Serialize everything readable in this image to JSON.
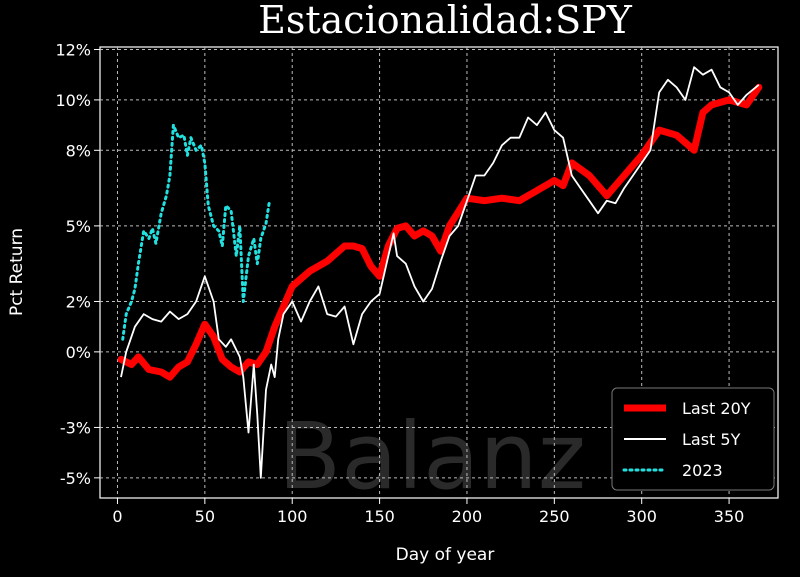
{
  "chart_data": {
    "type": "line",
    "title": "Estacionalidad:SPY",
    "xlabel": "Day of year",
    "ylabel": "Pct Return",
    "xlim": [
      -10,
      378
    ],
    "ylim": [
      -5.8,
      12.1
    ],
    "x_ticks": [
      0,
      50,
      100,
      150,
      200,
      250,
      300,
      350
    ],
    "y_ticks": [
      {
        "value": 12.0,
        "label": "12%"
      },
      {
        "value": 10.0,
        "label": "10%"
      },
      {
        "value": 8.0,
        "label": "8%"
      },
      {
        "value": 5.0,
        "label": "5%"
      },
      {
        "value": 2.0,
        "label": "2%"
      },
      {
        "value": 0.0,
        "label": "0%"
      },
      {
        "value": -3.0,
        "label": "-3%"
      },
      {
        "value": -5.0,
        "label": "-5%"
      }
    ],
    "grid": true,
    "legend_position": "bottom-right",
    "watermark": "Balanz",
    "series": [
      {
        "name": "Last 20Y",
        "color": "#ff0000",
        "style": "solid-thick",
        "x": [
          2,
          8,
          12,
          18,
          25,
          30,
          35,
          40,
          45,
          50,
          55,
          60,
          65,
          70,
          75,
          80,
          85,
          90,
          95,
          100,
          110,
          120,
          130,
          135,
          140,
          145,
          150,
          155,
          160,
          165,
          170,
          175,
          180,
          185,
          190,
          200,
          210,
          220,
          230,
          240,
          250,
          255,
          260,
          270,
          280,
          290,
          300,
          310,
          320,
          325,
          330,
          335,
          340,
          350,
          360,
          367
        ],
        "values": [
          -0.3,
          -0.5,
          -0.2,
          -0.7,
          -0.8,
          -1.0,
          -0.6,
          -0.4,
          0.3,
          1.1,
          0.6,
          -0.3,
          -0.6,
          -0.8,
          -0.4,
          -0.5,
          0.0,
          1.0,
          1.8,
          2.6,
          3.2,
          3.6,
          4.2,
          4.2,
          4.1,
          3.4,
          3.0,
          4.2,
          4.9,
          5.0,
          4.6,
          4.8,
          4.6,
          4.0,
          5.0,
          6.1,
          6.0,
          6.1,
          6.0,
          6.4,
          6.8,
          6.6,
          7.5,
          7.0,
          6.2,
          7.0,
          7.8,
          8.8,
          8.6,
          8.3,
          8.0,
          9.5,
          9.8,
          10.0,
          9.8,
          10.5
        ]
      },
      {
        "name": "Last 5Y",
        "color": "#ffffff",
        "style": "solid-thin",
        "x": [
          2,
          5,
          10,
          15,
          20,
          25,
          30,
          35,
          40,
          45,
          50,
          55,
          58,
          62,
          65,
          70,
          72,
          75,
          78,
          80,
          82,
          85,
          88,
          90,
          92,
          95,
          100,
          105,
          110,
          115,
          120,
          125,
          130,
          135,
          140,
          145,
          150,
          155,
          158,
          160,
          165,
          170,
          175,
          180,
          185,
          190,
          195,
          200,
          205,
          210,
          215,
          220,
          225,
          230,
          235,
          240,
          245,
          250,
          255,
          260,
          265,
          270,
          275,
          280,
          285,
          290,
          295,
          300,
          305,
          310,
          315,
          320,
          325,
          330,
          335,
          340,
          345,
          350,
          355,
          360,
          367
        ],
        "values": [
          -1.0,
          0.0,
          1.0,
          1.5,
          1.3,
          1.2,
          1.6,
          1.3,
          1.5,
          2.0,
          3.0,
          2.0,
          0.5,
          0.2,
          0.5,
          -0.2,
          -1.0,
          -3.2,
          -0.5,
          -2.5,
          -5.0,
          -1.5,
          -0.5,
          -1.0,
          0.5,
          1.5,
          2.0,
          1.2,
          2.0,
          2.6,
          1.5,
          1.4,
          1.8,
          0.3,
          1.5,
          2.0,
          2.3,
          3.8,
          4.7,
          3.8,
          3.5,
          2.6,
          2.0,
          2.5,
          3.6,
          4.6,
          5.0,
          6.0,
          7.0,
          7.0,
          7.5,
          8.2,
          8.5,
          8.5,
          9.3,
          9.0,
          9.5,
          8.8,
          8.5,
          7.0,
          6.5,
          6.0,
          5.5,
          6.0,
          5.9,
          6.5,
          7.0,
          7.5,
          8.0,
          10.3,
          10.8,
          10.5,
          10.0,
          11.3,
          11.0,
          11.2,
          10.5,
          10.3,
          9.8,
          10.2,
          10.6
        ]
      },
      {
        "name": "2023",
        "color": "#22e0e0",
        "style": "dotted",
        "x": [
          3,
          5,
          8,
          10,
          12,
          15,
          18,
          20,
          22,
          25,
          28,
          30,
          32,
          35,
          38,
          40,
          42,
          45,
          48,
          50,
          52,
          55,
          58,
          60,
          62,
          65,
          68,
          70,
          72,
          75,
          78,
          80,
          82,
          85,
          87
        ],
        "values": [
          0.5,
          1.5,
          2.0,
          2.5,
          3.5,
          4.8,
          4.5,
          4.9,
          4.3,
          5.5,
          6.2,
          7.0,
          9.0,
          8.5,
          8.6,
          7.8,
          8.5,
          8.0,
          8.2,
          7.5,
          5.8,
          5.0,
          4.8,
          4.2,
          5.8,
          5.6,
          3.8,
          5.0,
          2.0,
          3.8,
          4.5,
          3.5,
          4.5,
          5.1,
          6.0
        ]
      }
    ]
  }
}
